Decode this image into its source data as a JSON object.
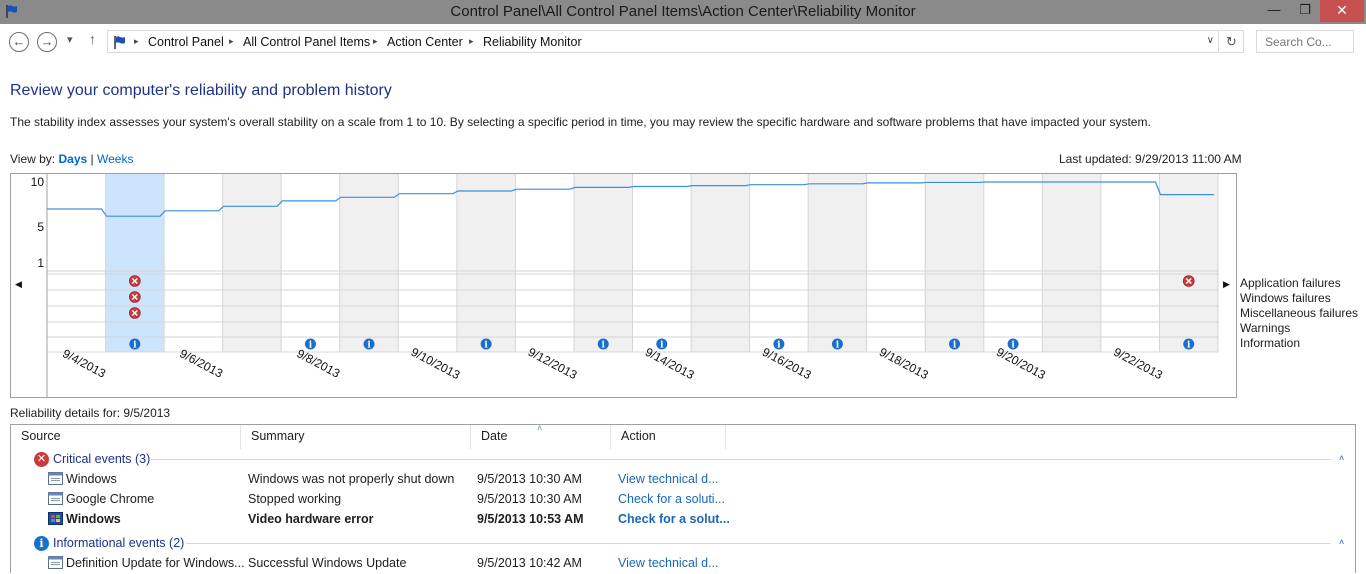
{
  "window": {
    "title": "Control Panel\\All Control Panel Items\\Action Center\\Reliability Monitor",
    "minimize": "—",
    "maximize": "❐",
    "close": "✕"
  },
  "nav": {
    "back_icon": "back-arrow-icon",
    "forward_icon": "forward-arrow-icon",
    "recent_icon": "chevron-down-icon",
    "up_icon": "up-arrow-icon",
    "back": "←",
    "forward": "→",
    "recent": "▾",
    "up": "↑",
    "breadcrumb": [
      "Control Panel",
      "All Control Panel Items",
      "Action Center",
      "Reliability Monitor"
    ],
    "address_dropdown": "∨",
    "refresh": "↻",
    "search_placeholder": "Search Co..."
  },
  "page": {
    "heading": "Review your computer's reliability and problem history",
    "description": "The stability index assesses your system's overall stability on a scale from 1 to 10. By selecting a specific period in time, you may review the specific hardware and software problems that have impacted your system.",
    "view_by_label": "View by:",
    "view_days": "Days",
    "view_sep": "|",
    "view_weeks": "Weeks",
    "last_updated": "Last updated: 9/29/2013 11:00 AM"
  },
  "chart_data": {
    "type": "line",
    "y_ticks": [
      "10",
      "5",
      "1"
    ],
    "ylim": [
      1,
      10
    ],
    "x_labels": [
      "9/4/2013",
      "9/6/2013",
      "9/8/2013",
      "9/10/2013",
      "9/12/2013",
      "9/14/2013",
      "9/16/2013",
      "9/18/2013",
      "9/20/2013",
      "9/22/2013"
    ],
    "columns": 20,
    "selected_column": 1,
    "stability_index": [
      7.0,
      6.2,
      6.8,
      7.3,
      7.9,
      8.3,
      8.7,
      9.0,
      9.2,
      9.4,
      9.5,
      9.6,
      9.7,
      9.8,
      9.9,
      9.95,
      10.0,
      10.0,
      10.0,
      8.6
    ],
    "legend": [
      "Application failures",
      "Windows failures",
      "Miscellaneous failures",
      "Warnings",
      "Information"
    ],
    "events": {
      "application_failures": [
        1,
        19
      ],
      "windows_failures": [
        1
      ],
      "misc_failures": [
        1
      ],
      "warnings": [],
      "information": [
        1,
        4,
        5,
        7,
        9,
        10,
        12,
        13,
        15,
        16,
        19
      ]
    },
    "colors": {
      "line": "#3c8fdc",
      "selected": "#cce4fc",
      "shaded": "#f0f0f0",
      "error": "#c93a3a",
      "info": "#1a6fc9"
    }
  },
  "details": {
    "header": "Reliability details for: 9/5/2013",
    "columns": [
      "Source",
      "Summary",
      "Date",
      "Action"
    ],
    "sort_indicator": "˄",
    "collapse": "˄",
    "groups": [
      {
        "label": "Critical events (3)",
        "icon": "error-icon",
        "glyph": "✕",
        "rows": [
          {
            "source": "Windows",
            "summary": "Windows was not properly shut down",
            "date": "9/5/2013 10:30 AM",
            "action": "View  technical d...",
            "icon": "window-icon",
            "bold": false
          },
          {
            "source": "Google Chrome",
            "summary": "Stopped working",
            "date": "9/5/2013 10:30 AM",
            "action": "Check for a soluti...",
            "icon": "window-icon",
            "bold": false
          },
          {
            "source": "Windows",
            "summary": "Video hardware error",
            "date": "9/5/2013 10:53 AM",
            "action": "Check for a solut...",
            "icon": "windows-logo-icon",
            "bold": true
          }
        ]
      },
      {
        "label": "Informational events (2)",
        "icon": "info-icon",
        "glyph": "i",
        "rows": [
          {
            "source": "Definition Update for Windows...",
            "summary": "Successful Windows Update",
            "date": "9/5/2013 10:42 AM",
            "action": "View  technical d...",
            "icon": "window-icon",
            "bold": false
          }
        ]
      }
    ]
  }
}
